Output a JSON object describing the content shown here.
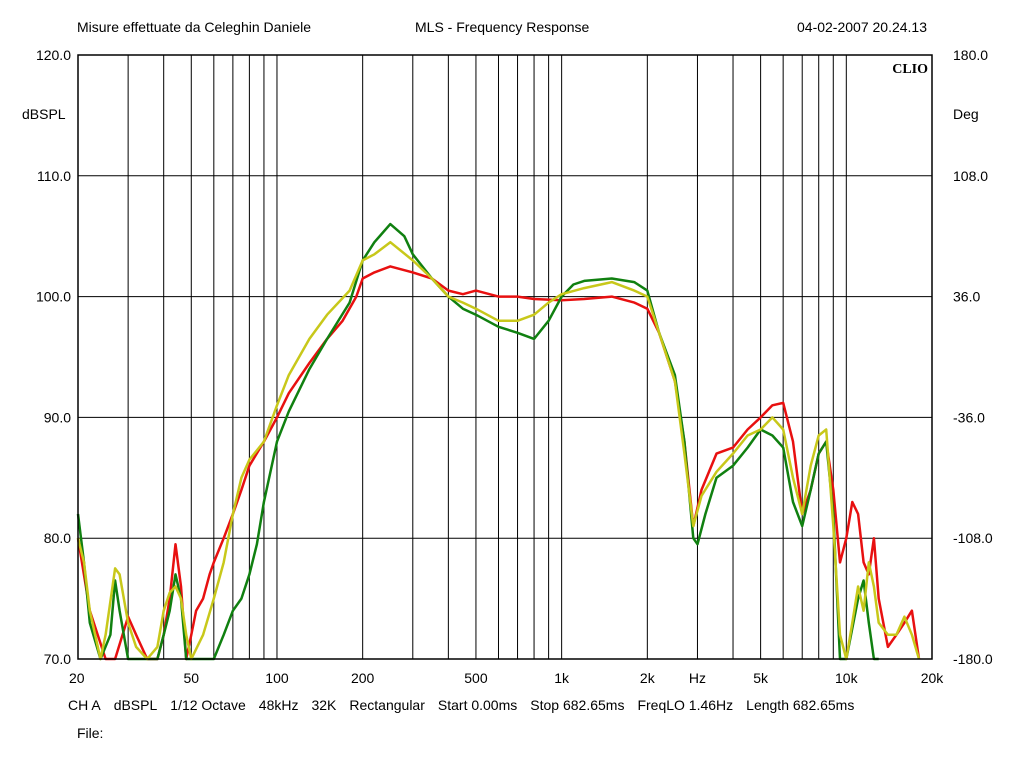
{
  "header": {
    "left": "Misure effettuate da Celeghin Daniele",
    "center": "MLS - Frequency Response",
    "right": "04-02-2007 20.24.13"
  },
  "brand": "CLIO",
  "status": {
    "items": [
      "CH A",
      "dBSPL",
      "1/12 Octave",
      "48kHz",
      "32K",
      "Rectangular",
      "Start 0.00ms",
      "Stop 682.65ms",
      "FreqLO 1.46Hz",
      "Length 682.65ms"
    ],
    "file_label": "File:"
  },
  "colors": {
    "red": "#e81010",
    "green": "#108010",
    "yellow": "#c8c81a",
    "grid": "#000000"
  },
  "chart_data": {
    "type": "line",
    "title": "MLS - Frequency Response",
    "xlabel": "Hz",
    "ylabel": "dBSPL",
    "y2label": "Deg",
    "xscale": "log",
    "xlim": [
      20,
      20000
    ],
    "ylim": [
      70,
      120
    ],
    "y2lim": [
      -180,
      180
    ],
    "grid": true,
    "legend": "none",
    "x_ticks": [
      {
        "v": 20,
        "label": "20"
      },
      {
        "v": 50,
        "label": "50"
      },
      {
        "v": 100,
        "label": "100"
      },
      {
        "v": 200,
        "label": "200"
      },
      {
        "v": 500,
        "label": "500"
      },
      {
        "v": 1000,
        "label": "1k"
      },
      {
        "v": 2000,
        "label": "2k"
      },
      {
        "v": 5000,
        "label": "5k"
      },
      {
        "v": 10000,
        "label": "10k"
      },
      {
        "v": 20000,
        "label": "20k"
      }
    ],
    "y_ticks": [
      {
        "v": 70,
        "label": "70.0"
      },
      {
        "v": 80,
        "label": "80.0"
      },
      {
        "v": 90,
        "label": "90.0"
      },
      {
        "v": 100,
        "label": "100.0"
      },
      {
        "v": 110,
        "label": "110.0"
      },
      {
        "v": 120,
        "label": "120.0"
      }
    ],
    "y2_ticks": [
      {
        "v": -180,
        "label": "-180.0"
      },
      {
        "v": -108,
        "label": "-108.0"
      },
      {
        "v": -36,
        "label": "-36.0"
      },
      {
        "v": 36,
        "label": "36.0"
      },
      {
        "v": 108,
        "label": "108.0"
      },
      {
        "v": 180,
        "label": "180.0"
      }
    ],
    "series": [
      {
        "color": "#e81010",
        "points": [
          [
            20,
            80
          ],
          [
            22,
            74
          ],
          [
            25,
            70
          ],
          [
            27,
            70
          ],
          [
            30,
            73.5
          ],
          [
            32,
            72
          ],
          [
            35,
            70
          ],
          [
            38,
            70
          ],
          [
            40,
            72
          ],
          [
            42,
            75
          ],
          [
            44,
            79.5
          ],
          [
            46,
            76
          ],
          [
            48,
            70
          ],
          [
            50,
            72
          ],
          [
            52,
            74
          ],
          [
            55,
            75
          ],
          [
            58,
            77
          ],
          [
            60,
            78
          ],
          [
            65,
            80
          ],
          [
            70,
            82
          ],
          [
            75,
            84
          ],
          [
            80,
            86
          ],
          [
            90,
            88
          ],
          [
            100,
            90
          ],
          [
            110,
            92
          ],
          [
            130,
            94.5
          ],
          [
            150,
            96.5
          ],
          [
            170,
            98
          ],
          [
            190,
            100
          ],
          [
            200,
            101.5
          ],
          [
            220,
            102
          ],
          [
            250,
            102.5
          ],
          [
            300,
            102
          ],
          [
            350,
            101.5
          ],
          [
            400,
            100.5
          ],
          [
            450,
            100.2
          ],
          [
            500,
            100.5
          ],
          [
            600,
            100
          ],
          [
            700,
            100
          ],
          [
            800,
            99.8
          ],
          [
            1000,
            99.7
          ],
          [
            1200,
            99.8
          ],
          [
            1500,
            100
          ],
          [
            1800,
            99.5
          ],
          [
            2000,
            99
          ],
          [
            2200,
            97
          ],
          [
            2500,
            93
          ],
          [
            2700,
            88
          ],
          [
            2900,
            81
          ],
          [
            3100,
            84
          ],
          [
            3500,
            87
          ],
          [
            4000,
            87.5
          ],
          [
            4500,
            89
          ],
          [
            5000,
            90
          ],
          [
            5500,
            91
          ],
          [
            6000,
            91.2
          ],
          [
            6500,
            88
          ],
          [
            7000,
            82
          ],
          [
            7500,
            84
          ],
          [
            8000,
            87
          ],
          [
            8500,
            88
          ],
          [
            9000,
            84
          ],
          [
            9500,
            78
          ],
          [
            10000,
            80
          ],
          [
            10500,
            83
          ],
          [
            11000,
            82
          ],
          [
            11500,
            78
          ],
          [
            12000,
            77
          ],
          [
            12500,
            80
          ],
          [
            13000,
            75
          ],
          [
            14000,
            71
          ],
          [
            15000,
            72
          ],
          [
            16000,
            73
          ],
          [
            17000,
            74
          ],
          [
            18000,
            70
          ]
        ]
      },
      {
        "color": "#108010",
        "points": [
          [
            20,
            82
          ],
          [
            21,
            78
          ],
          [
            22,
            73
          ],
          [
            24,
            70
          ],
          [
            26,
            72
          ],
          [
            27,
            76.5
          ],
          [
            28,
            74
          ],
          [
            30,
            70
          ],
          [
            35,
            70
          ],
          [
            38,
            70
          ],
          [
            40,
            72
          ],
          [
            42,
            74
          ],
          [
            44,
            77
          ],
          [
            46,
            75
          ],
          [
            48,
            70
          ],
          [
            50,
            70
          ],
          [
            55,
            70
          ],
          [
            60,
            70
          ],
          [
            65,
            72
          ],
          [
            70,
            74
          ],
          [
            75,
            75
          ],
          [
            80,
            77
          ],
          [
            85,
            79.5
          ],
          [
            90,
            83
          ],
          [
            100,
            88
          ],
          [
            110,
            90.5
          ],
          [
            130,
            94
          ],
          [
            150,
            96.5
          ],
          [
            180,
            99.5
          ],
          [
            200,
            103
          ],
          [
            220,
            104.5
          ],
          [
            250,
            106
          ],
          [
            280,
            105
          ],
          [
            300,
            103.5
          ],
          [
            350,
            101.5
          ],
          [
            400,
            100
          ],
          [
            450,
            99
          ],
          [
            500,
            98.5
          ],
          [
            600,
            97.5
          ],
          [
            700,
            97
          ],
          [
            800,
            96.5
          ],
          [
            900,
            98
          ],
          [
            1000,
            100
          ],
          [
            1100,
            101
          ],
          [
            1200,
            101.3
          ],
          [
            1500,
            101.5
          ],
          [
            1800,
            101.2
          ],
          [
            2000,
            100.5
          ],
          [
            2200,
            97
          ],
          [
            2500,
            93.5
          ],
          [
            2700,
            88
          ],
          [
            2900,
            80
          ],
          [
            3000,
            79.5
          ],
          [
            3200,
            82
          ],
          [
            3500,
            85
          ],
          [
            4000,
            86
          ],
          [
            4500,
            87.5
          ],
          [
            5000,
            89
          ],
          [
            5500,
            88.5
          ],
          [
            6000,
            87.5
          ],
          [
            6500,
            83
          ],
          [
            7000,
            81
          ],
          [
            7500,
            84
          ],
          [
            8000,
            87
          ],
          [
            8500,
            88
          ],
          [
            9000,
            82
          ],
          [
            9500,
            70
          ],
          [
            10000,
            70
          ],
          [
            11000,
            75
          ],
          [
            11500,
            76.5
          ],
          [
            12000,
            73
          ],
          [
            12500,
            70
          ],
          [
            13000,
            70
          ]
        ]
      },
      {
        "color": "#c8c81a",
        "points": [
          [
            20,
            80
          ],
          [
            21,
            78
          ],
          [
            22,
            74
          ],
          [
            24,
            70
          ],
          [
            25,
            72
          ],
          [
            27,
            77.5
          ],
          [
            28,
            77
          ],
          [
            30,
            73
          ],
          [
            32,
            71
          ],
          [
            35,
            70
          ],
          [
            38,
            71
          ],
          [
            40,
            74
          ],
          [
            42,
            75.5
          ],
          [
            44,
            76
          ],
          [
            46,
            75
          ],
          [
            48,
            72
          ],
          [
            50,
            70
          ],
          [
            55,
            72
          ],
          [
            60,
            75
          ],
          [
            65,
            78
          ],
          [
            70,
            82
          ],
          [
            75,
            85
          ],
          [
            80,
            86.5
          ],
          [
            90,
            88
          ],
          [
            100,
            91
          ],
          [
            110,
            93.5
          ],
          [
            130,
            96.5
          ],
          [
            150,
            98.5
          ],
          [
            180,
            100.5
          ],
          [
            200,
            103
          ],
          [
            220,
            103.5
          ],
          [
            250,
            104.5
          ],
          [
            300,
            103
          ],
          [
            350,
            101.5
          ],
          [
            400,
            100
          ],
          [
            450,
            99.5
          ],
          [
            500,
            99
          ],
          [
            600,
            98
          ],
          [
            700,
            98
          ],
          [
            800,
            98.5
          ],
          [
            900,
            99.5
          ],
          [
            1000,
            100.2
          ],
          [
            1200,
            100.7
          ],
          [
            1500,
            101.2
          ],
          [
            1800,
            100.5
          ],
          [
            2000,
            100
          ],
          [
            2200,
            97
          ],
          [
            2500,
            93
          ],
          [
            2700,
            87
          ],
          [
            2900,
            81
          ],
          [
            3100,
            83.5
          ],
          [
            3500,
            85.5
          ],
          [
            4000,
            87
          ],
          [
            4500,
            88.5
          ],
          [
            5000,
            89
          ],
          [
            5500,
            90
          ],
          [
            6000,
            89
          ],
          [
            6500,
            85
          ],
          [
            7000,
            82
          ],
          [
            7500,
            86
          ],
          [
            8000,
            88.5
          ],
          [
            8500,
            89
          ],
          [
            9000,
            81
          ],
          [
            9500,
            72
          ],
          [
            10000,
            70
          ],
          [
            10500,
            73
          ],
          [
            11000,
            76
          ],
          [
            11500,
            74
          ],
          [
            12000,
            78
          ],
          [
            12500,
            76
          ],
          [
            13000,
            73
          ],
          [
            14000,
            72
          ],
          [
            15000,
            72
          ],
          [
            16000,
            73.5
          ],
          [
            17000,
            72
          ],
          [
            18000,
            70
          ]
        ]
      }
    ]
  }
}
